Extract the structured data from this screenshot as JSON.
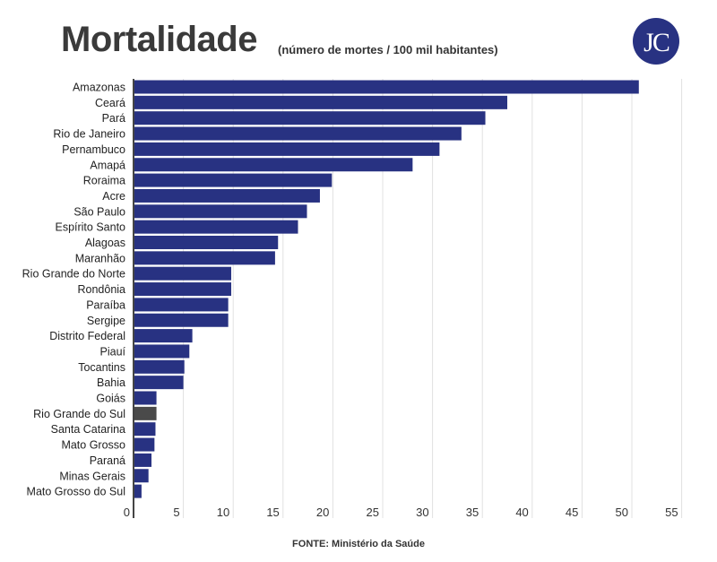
{
  "title": "Mortalidade",
  "subtitle": "(número de mortes / 100 mil habitantes)",
  "source": "FONTE: Ministério da Saúde",
  "logo": {
    "text": "JC",
    "color": "#283282"
  },
  "chart_data": {
    "type": "bar",
    "orientation": "horizontal",
    "title": "Mortalidade",
    "subtitle": "(número de mortes / 100 mil habitantes)",
    "xlim": [
      0,
      55
    ],
    "ticks": [
      0,
      5,
      10,
      15,
      20,
      25,
      30,
      35,
      40,
      45,
      50,
      55
    ],
    "grid": true,
    "bar_color": "#283282",
    "highlight_color": "#4a4a4a",
    "highlight": "Rio Grande do Sul",
    "categories": [
      "Amazonas",
      "Ceará",
      "Pará",
      "Rio de Janeiro",
      "Pernambuco",
      "Amapá",
      "Roraima",
      "Acre",
      "São Paulo",
      "Espírito Santo",
      "Alagoas",
      "Maranhão",
      "Rio Grande do Norte",
      "Rondônia",
      "Paraíba",
      "Sergipe",
      "Distrito Federal",
      "Piauí",
      "Tocantins",
      "Bahia",
      "Goiás",
      "Rio Grande do Sul",
      "Santa Catarina",
      "Mato Grosso",
      "Paraná",
      "Minas Gerais",
      "Mato Grosso do Sul"
    ],
    "values": [
      50.7,
      37.5,
      35.3,
      32.9,
      30.7,
      28.0,
      19.9,
      18.7,
      17.4,
      16.5,
      14.5,
      14.2,
      9.8,
      9.8,
      9.5,
      9.5,
      5.9,
      5.6,
      5.1,
      5.0,
      2.3,
      2.3,
      2.2,
      2.1,
      1.8,
      1.5,
      0.8
    ]
  }
}
